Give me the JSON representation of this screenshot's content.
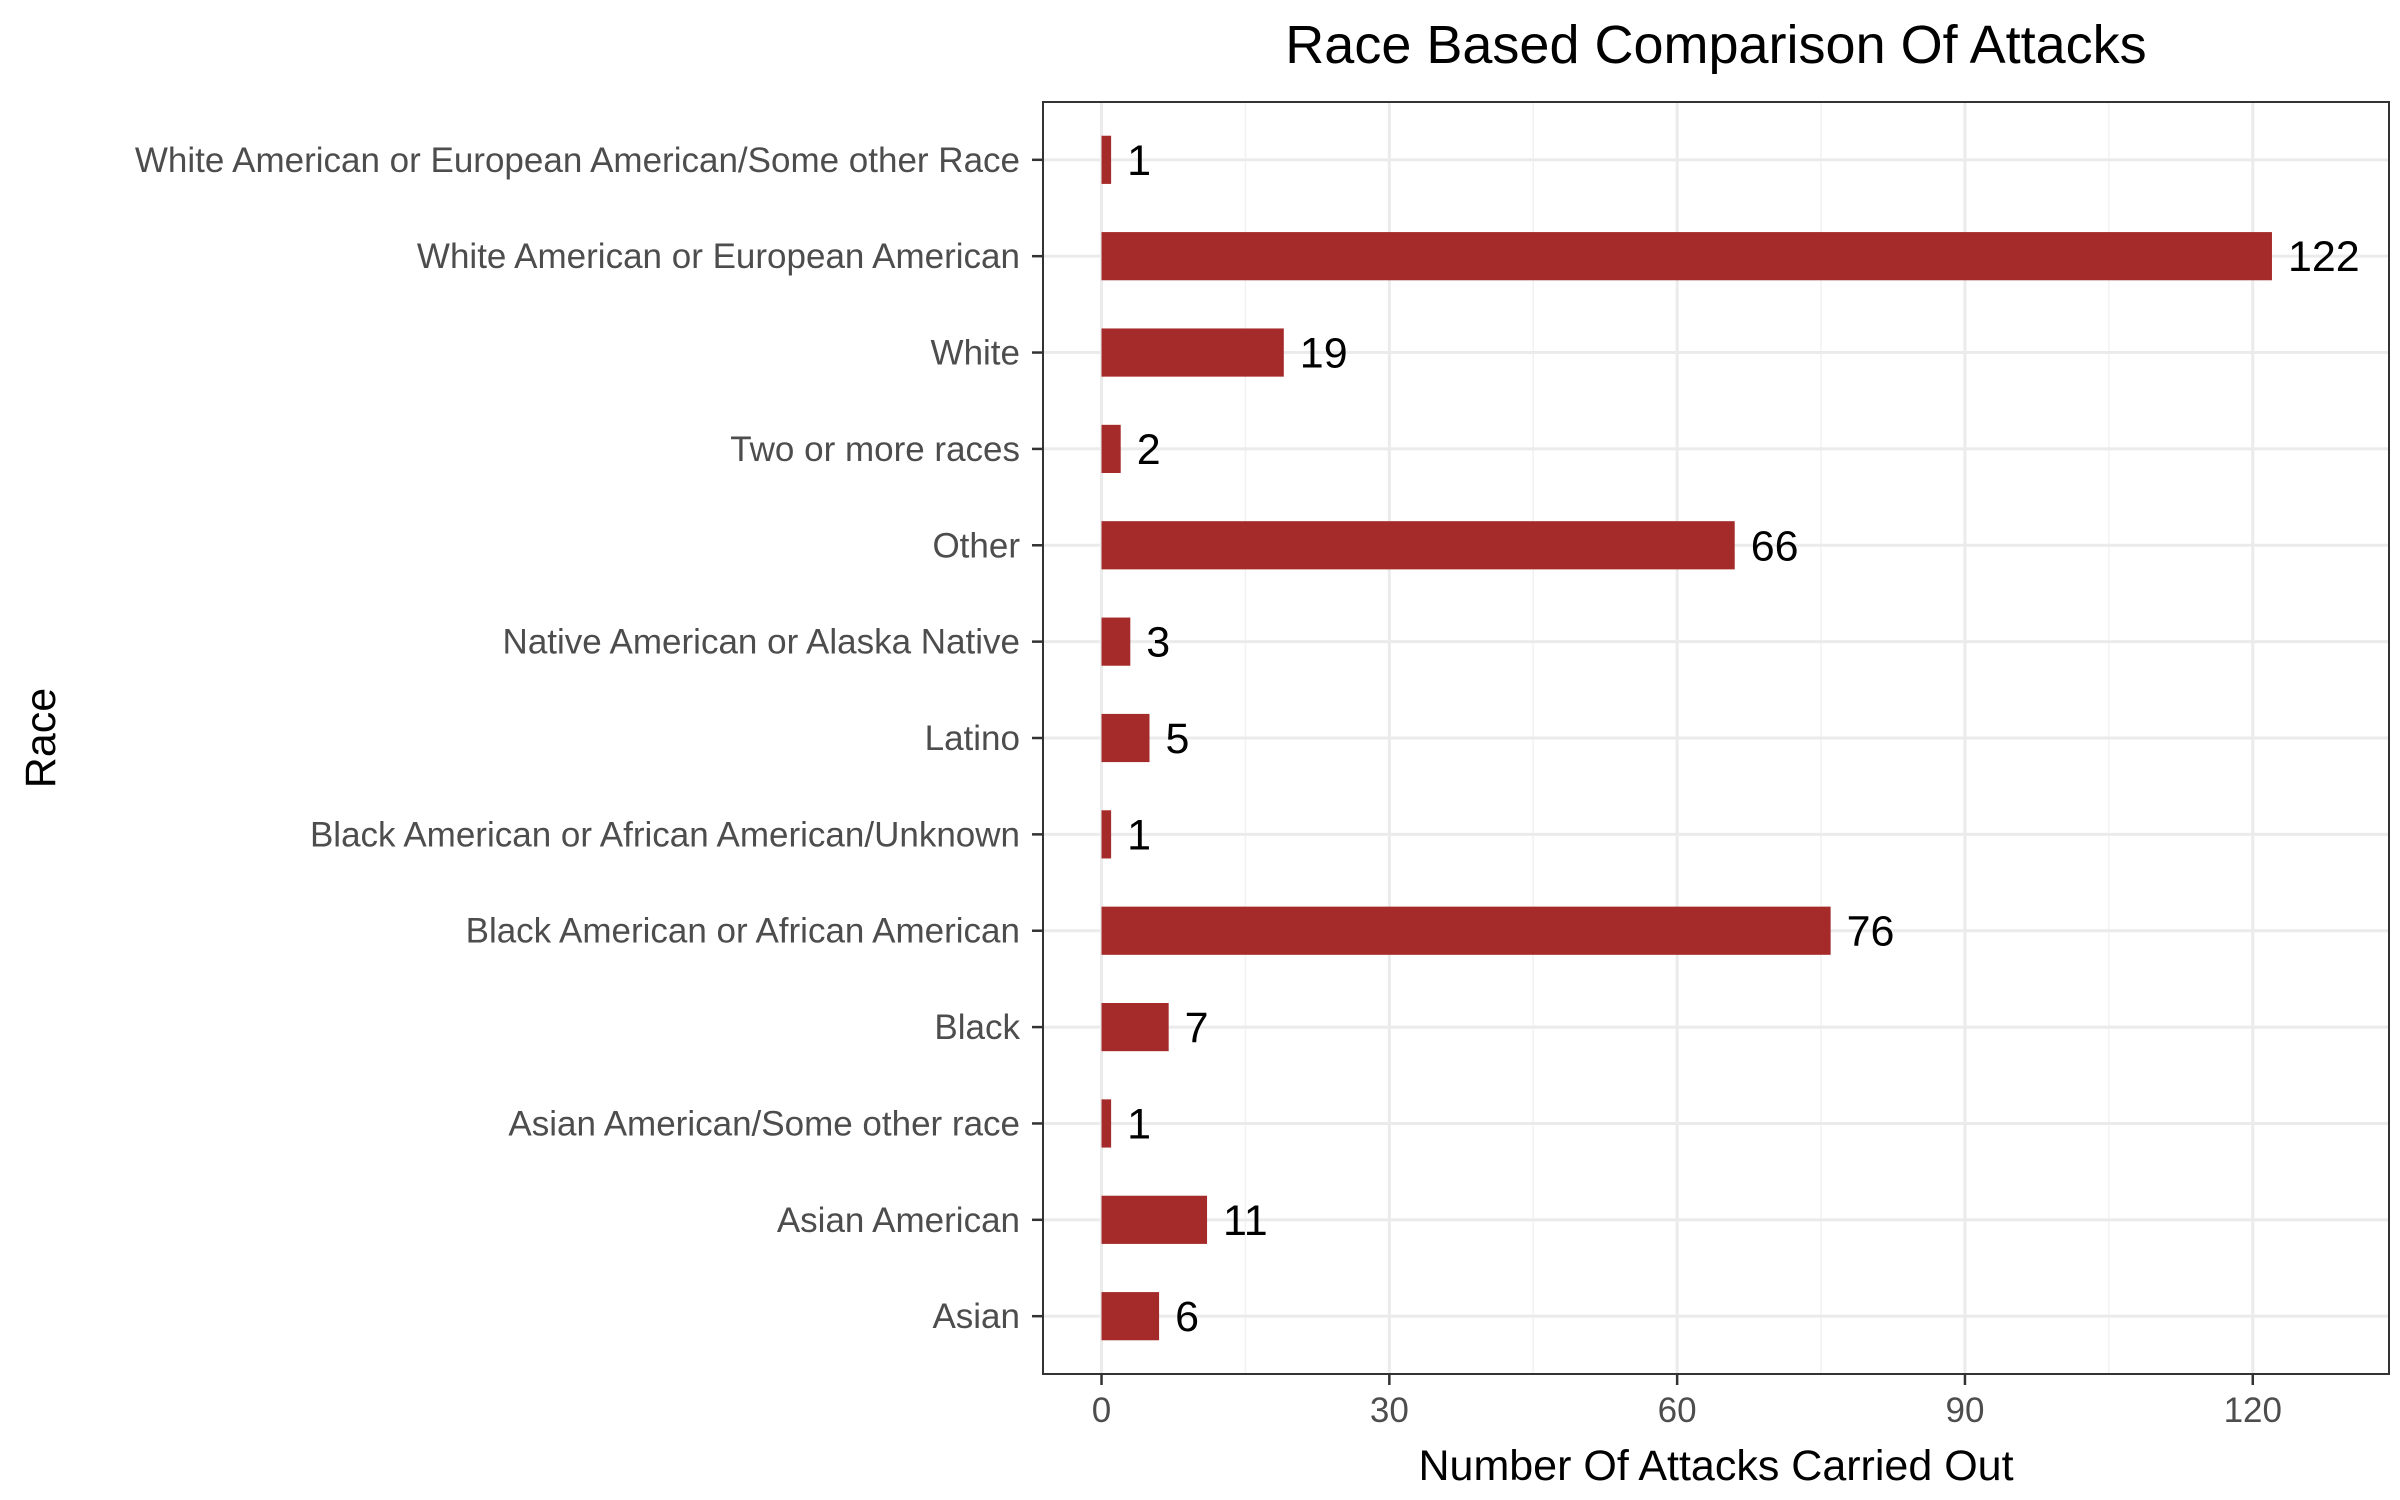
{
  "chart_data": {
    "type": "bar",
    "orientation": "horizontal",
    "title": "Race Based Comparison Of Attacks",
    "xlabel": "Number Of Attacks Carried Out",
    "ylabel": "Race",
    "categories": [
      "Asian",
      "Asian American",
      "Asian American/Some other race",
      "Black",
      "Black American or African American",
      "Black American or African American/Unknown",
      "Latino",
      "Native American or Alaska Native",
      "Other",
      "Two or more races",
      "White",
      "White American or European American",
      "White American or European American/Some other Race"
    ],
    "values": [
      6,
      11,
      1,
      7,
      76,
      1,
      5,
      3,
      66,
      2,
      19,
      122,
      1
    ],
    "xlim": [
      -6.1,
      134.2
    ],
    "xticks": [
      0,
      30,
      60,
      90,
      120
    ],
    "grid": true,
    "bar_color": "#a52a2a",
    "theme": "bw"
  }
}
